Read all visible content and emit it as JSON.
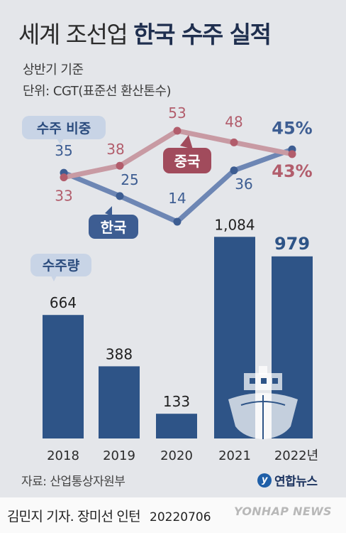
{
  "header": {
    "title_light": "세계 조선업",
    "title_bold": "한국 수주 실적",
    "subtitle_1": "상반기 기준",
    "subtitle_2": "단위: CGT(표준선 환산톤수)"
  },
  "chart_data": [
    {
      "type": "line",
      "label": "수주 비중",
      "x": [
        "2018",
        "2019",
        "2020",
        "2021",
        "2022"
      ],
      "series": [
        {
          "name": "한국",
          "values": [
            35,
            25,
            14,
            36,
            45
          ],
          "value_labels": [
            "35",
            "25",
            "14",
            "36",
            "45%"
          ],
          "color": "#3d5d92"
        },
        {
          "name": "중국",
          "values": [
            33,
            38,
            53,
            48,
            43
          ],
          "value_labels": [
            "33",
            "38",
            "53",
            "48",
            "43%"
          ],
          "color": "#b25d6c"
        }
      ],
      "unit": "%"
    },
    {
      "type": "bar",
      "label": "수주량",
      "categories": [
        "2018",
        "2019",
        "2020",
        "2021",
        "2022년"
      ],
      "values": [
        664,
        388,
        133,
        1084,
        979
      ],
      "value_labels": [
        "664",
        "388",
        "133",
        "1,084",
        "979"
      ],
      "color": "#2e5487",
      "ylim": [
        0,
        1150
      ]
    }
  ],
  "footer": {
    "source": "자료: 산업통상자원부",
    "logo_text": "연합뉴스",
    "logo_mark": "y",
    "credit": "김민지 기자. 장미선 인턴",
    "date": "20220706",
    "watermark": "YONHAP NEWS"
  },
  "icons": {
    "ship": "ship-icon"
  }
}
